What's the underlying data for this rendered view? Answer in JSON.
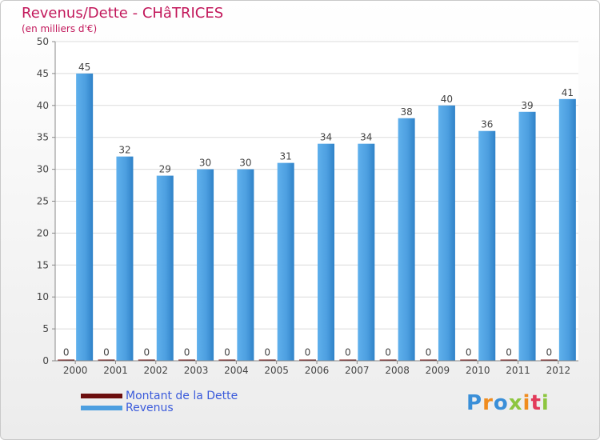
{
  "header": {
    "title": "Revenus/Dette - CHâTRICES",
    "subtitle": "(en milliers d'€)"
  },
  "colors": {
    "dette": "#6b0e0e",
    "revenus": "#4d9fe0",
    "revenus_dark": "#2b7bbf",
    "title": "#c2185b"
  },
  "legend": {
    "items": [
      {
        "label": "Montant de la Dette",
        "color": "#6b0e0e"
      },
      {
        "label": "Revenus",
        "color": "#4d9fe0"
      }
    ]
  },
  "logo": {
    "text": "Proxiti"
  },
  "chart_data": {
    "type": "bar",
    "title": "Revenus/Dette - CHâTRICES",
    "ylabel": "(en milliers d'€)",
    "ylim": [
      0,
      50
    ],
    "yticks": [
      0,
      5,
      10,
      15,
      20,
      25,
      30,
      35,
      40,
      45,
      50
    ],
    "grid": true,
    "legend_position": "bottom-left",
    "categories": [
      "2000",
      "2001",
      "2002",
      "2003",
      "2004",
      "2005",
      "2006",
      "2007",
      "2008",
      "2009",
      "2010",
      "2011",
      "2012"
    ],
    "series": [
      {
        "name": "Montant de la Dette",
        "values": [
          0,
          0,
          0,
          0,
          0,
          0,
          0,
          0,
          0,
          0,
          0,
          0,
          0
        ]
      },
      {
        "name": "Revenus",
        "values": [
          45,
          32,
          29,
          30,
          30,
          31,
          34,
          34,
          38,
          40,
          36,
          39,
          41
        ]
      }
    ]
  }
}
